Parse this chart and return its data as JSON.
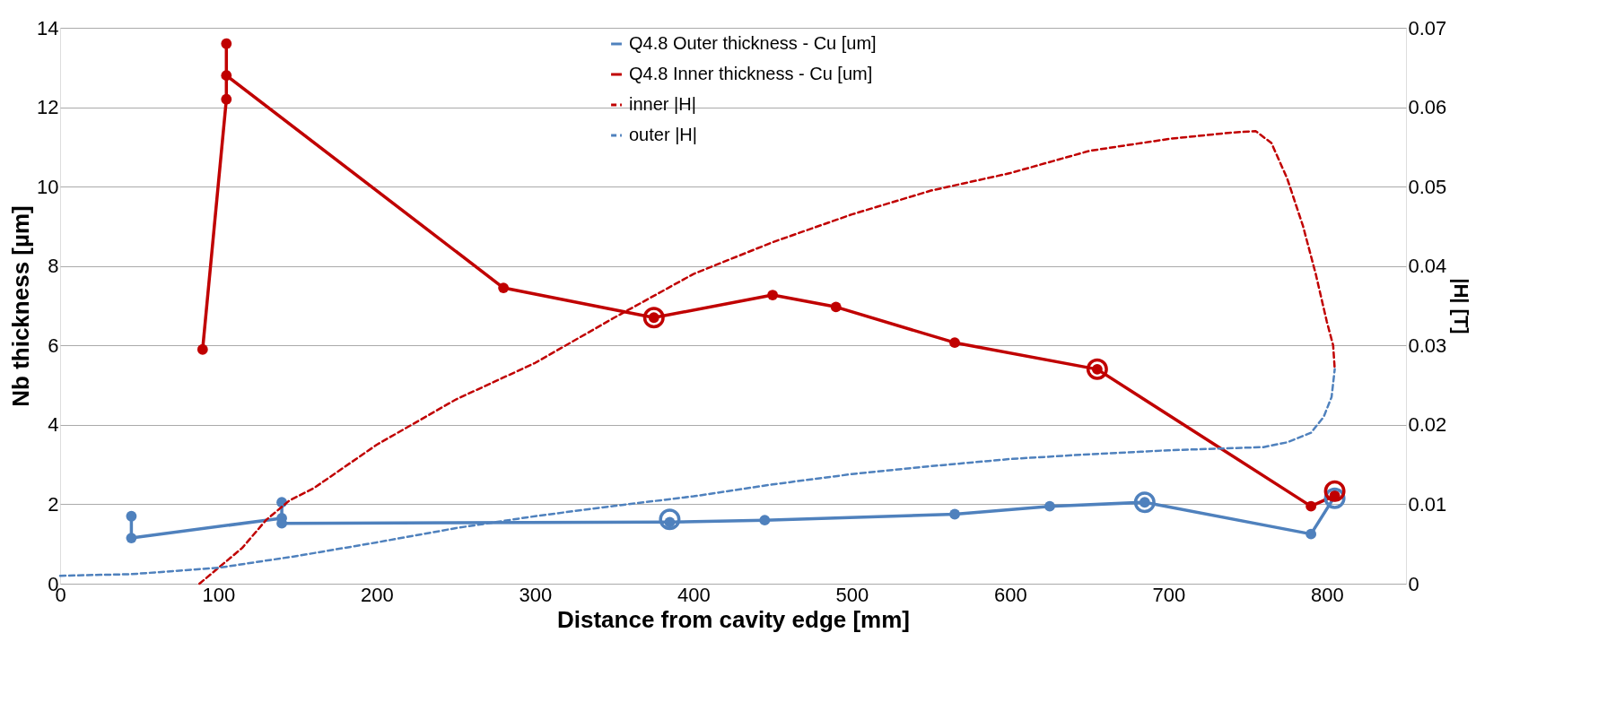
{
  "chart_data": {
    "type": "line",
    "xlabel": "Distance from cavity edge [mm]",
    "ylabel": "Nb thickness [µm]",
    "y2label": "|H| [T]",
    "xlim": [
      0,
      850
    ],
    "xticks": [
      0,
      100,
      200,
      300,
      400,
      500,
      600,
      700,
      800
    ],
    "ylim": [
      0,
      14
    ],
    "yticks": [
      0,
      2,
      4,
      6,
      8,
      10,
      12,
      14
    ],
    "y2lim": [
      0,
      0.07
    ],
    "y2ticks": [
      0,
      0.01,
      0.02,
      0.03,
      0.04,
      0.05,
      0.06,
      0.07
    ],
    "grid": "y",
    "legend": "top",
    "marker": "circle",
    "line_style": "solid",
    "series": [
      {
        "name": "Q4.8 Outer thickness - Cu [um]",
        "color": "#4f81bd",
        "x": [
          45,
          45,
          140,
          140,
          140,
          385,
          445,
          565,
          625,
          685,
          790,
          805
        ],
        "values": [
          1.7,
          1.15,
          1.65,
          2.05,
          1.52,
          1.55,
          1.6,
          1.75,
          1.95,
          2.05,
          1.25,
          2.2
        ]
      },
      {
        "name": "Q4.8 Inner thickness - Cu [um]",
        "color": "#c00000",
        "x": [
          90,
          105,
          105,
          105,
          280,
          375,
          450,
          490,
          565,
          655,
          790,
          805
        ],
        "values": [
          5.9,
          12.2,
          13.6,
          12.8,
          7.45,
          6.7,
          7.27,
          6.97,
          6.07,
          5.4,
          1.95,
          2.22
        ]
      },
      {
        "name": "inner |H|",
        "color": "#c00000",
        "axis": "y2",
        "line_style": "dashed",
        "marker": "none",
        "x": [
          88,
          100,
          115,
          130,
          145,
          160,
          200,
          250,
          300,
          350,
          400,
          450,
          500,
          550,
          600,
          650,
          700,
          740,
          755,
          765,
          775,
          785,
          793,
          800,
          804,
          805
        ],
        "values": [
          0,
          0.002,
          0.0045,
          0.008,
          0.0105,
          0.012,
          0.0175,
          0.0232,
          0.0278,
          0.0335,
          0.039,
          0.043,
          0.0465,
          0.0495,
          0.0517,
          0.0545,
          0.056,
          0.0568,
          0.057,
          0.0555,
          0.051,
          0.045,
          0.039,
          0.033,
          0.03,
          0.027
        ]
      },
      {
        "name": "outer |H|",
        "color": "#4f81bd",
        "axis": "y2",
        "line_style": "dashed",
        "marker": "none",
        "x": [
          0,
          45,
          100,
          150,
          200,
          250,
          300,
          350,
          400,
          450,
          500,
          550,
          600,
          650,
          700,
          760,
          775,
          790,
          798,
          803,
          805
        ],
        "values": [
          0.001,
          0.0012,
          0.002,
          0.0035,
          0.0052,
          0.007,
          0.0085,
          0.0098,
          0.011,
          0.0125,
          0.0138,
          0.0148,
          0.0157,
          0.0163,
          0.0168,
          0.0172,
          0.0178,
          0.019,
          0.021,
          0.0235,
          0.027
        ]
      },
      {
        "type": "scatter",
        "color": "#4f81bd",
        "x": [
          385,
          685,
          805
        ],
        "values": [
          1.62,
          2.05,
          2.15
        ]
      },
      {
        "type": "scatter",
        "color": "#c00000",
        "x": [
          375,
          655,
          805
        ],
        "values": [
          6.7,
          5.4,
          2.33
        ]
      }
    ]
  }
}
